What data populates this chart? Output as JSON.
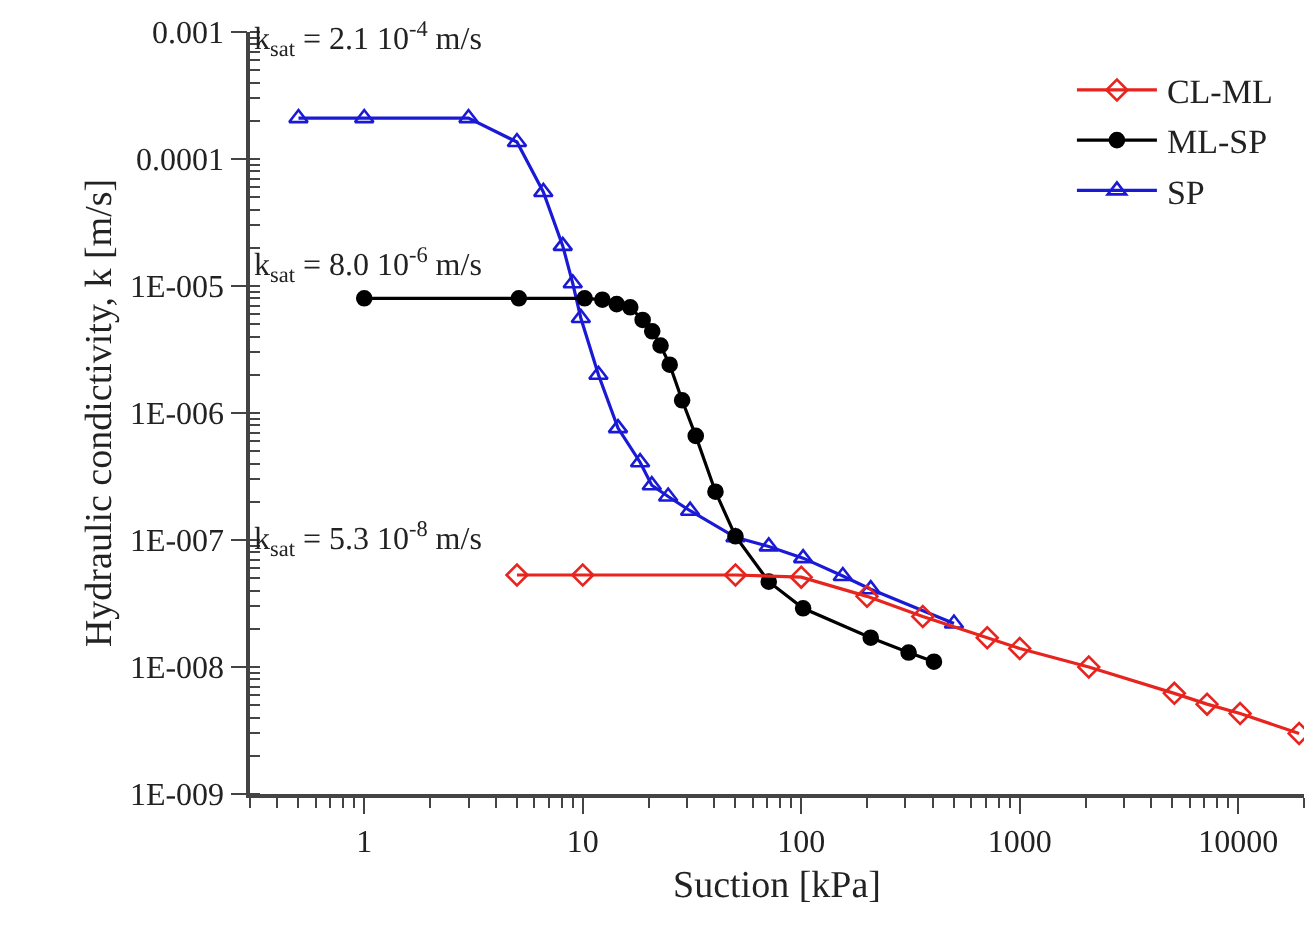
{
  "chart_data": {
    "type": "line",
    "xlabel": "Suction [kPa]",
    "ylabel": "Hydraulic condictivity, k [m/s]",
    "log": "xy",
    "xlim": [
      0.3,
      20000
    ],
    "ylim": [
      1e-09,
      0.001
    ],
    "xticks": [
      1,
      10,
      100,
      1000,
      10000
    ],
    "yticks": [
      {
        "value": 1e-09,
        "label": "1E-009"
      },
      {
        "value": 1e-08,
        "label": "1E-008"
      },
      {
        "value": 1e-07,
        "label": "1E-007"
      },
      {
        "value": 1e-06,
        "label": "1E-006"
      },
      {
        "value": 1e-05,
        "label": "1E-005"
      },
      {
        "value": 0.0001,
        "label": "0.0001"
      },
      {
        "value": 0.001,
        "label": "0.001"
      }
    ],
    "legend": "top right",
    "line_style": "solid",
    "series": [
      {
        "name": "CL-ML",
        "color": "#e8241f",
        "marker": "diamond",
        "x": [
          5,
          10,
          50,
          100,
          200,
          360,
          710,
          1000,
          2070,
          5100,
          7200,
          10200,
          19000
        ],
        "values": [
          5.3e-08,
          5.3e-08,
          5.3e-08,
          5.1e-08,
          3.6e-08,
          2.5e-08,
          1.7e-08,
          1.4e-08,
          1e-08,
          6.2e-09,
          5.1e-09,
          4.3e-09,
          3e-09
        ]
      },
      {
        "name": "ML-SP",
        "color": "#000000",
        "marker": "circle",
        "x": [
          1,
          5.1,
          10.2,
          12.3,
          14.3,
          16.5,
          18.8,
          20.8,
          22.7,
          25,
          28.5,
          32.9,
          40.5,
          50,
          71,
          102,
          208,
          310,
          405
        ],
        "values": [
          8e-06,
          8e-06,
          8e-06,
          7.8e-06,
          7.2e-06,
          6.8e-06,
          5.4e-06,
          4.4e-06,
          3.4e-06,
          2.4e-06,
          1.26e-06,
          6.6e-07,
          2.4e-07,
          1.07e-07,
          4.7e-08,
          2.9e-08,
          1.7e-08,
          1.3e-08,
          1.1e-08
        ]
      },
      {
        "name": "SP",
        "color": "#1a1ad6",
        "marker": "triangle",
        "x": [
          0.5,
          1,
          3,
          5,
          6.6,
          8.1,
          9,
          9.8,
          11.8,
          14.5,
          18.3,
          20.7,
          24.6,
          31,
          50,
          71,
          102,
          155,
          208,
          500
        ],
        "values": [
          0.00021,
          0.00021,
          0.00021,
          0.000136,
          5.5e-05,
          2.07e-05,
          1.05e-05,
          5.6e-06,
          2e-06,
          7.6e-07,
          4.1e-07,
          2.7e-07,
          2.2e-07,
          1.7e-07,
          1.05e-07,
          8.9e-08,
          7.2e-08,
          5.2e-08,
          4.1e-08,
          2.2e-08
        ]
      }
    ],
    "annotations": [
      "k$_{sat}$ = 2.1 10$^{-4}$ m/s",
      "k$_{sat}$ = 8.0 10$^{-6}$ m/s",
      "k$_{sat}$ = 5.3 10$^{-8}$ m/s"
    ]
  }
}
